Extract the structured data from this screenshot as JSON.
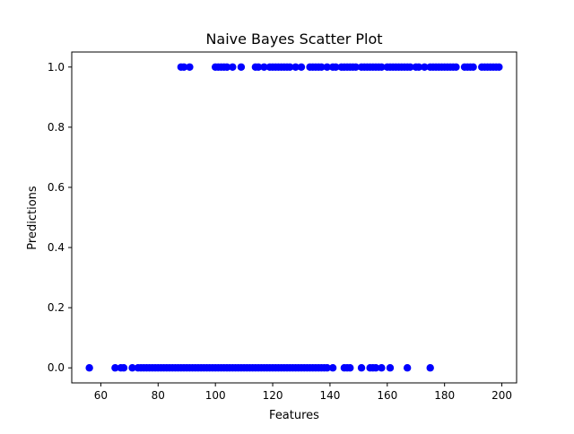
{
  "chart_data": {
    "type": "scatter",
    "title": "Naive Bayes Scatter Plot",
    "xlabel": "Features",
    "ylabel": "Predictions",
    "xlim": [
      49.85,
      205.15
    ],
    "ylim": [
      -0.05,
      1.05
    ],
    "xticks": [
      60,
      80,
      100,
      120,
      140,
      160,
      180,
      200
    ],
    "xtick_labels": [
      "60",
      "80",
      "100",
      "120",
      "140",
      "160",
      "180",
      "200"
    ],
    "yticks": [
      0.0,
      0.2,
      0.4,
      0.6,
      0.8,
      1.0
    ],
    "ytick_labels": [
      "0.0",
      "0.2",
      "0.4",
      "0.6",
      "0.8",
      "1.0"
    ],
    "marker_color": "#0000ff",
    "grid": false,
    "series": [
      {
        "label_y": 1.0,
        "x": [
          88,
          89,
          91,
          100,
          101,
          102,
          103,
          104,
          106,
          109,
          114,
          115,
          117,
          119,
          120,
          121,
          122,
          123,
          124,
          125,
          126,
          128,
          130,
          133,
          134,
          135,
          136,
          137,
          139,
          141,
          142,
          144,
          145,
          146,
          147,
          148,
          149,
          151,
          152,
          153,
          154,
          155,
          156,
          157,
          158,
          160,
          161,
          162,
          163,
          164,
          165,
          166,
          167,
          168,
          170,
          171,
          173,
          175,
          176,
          177,
          178,
          179,
          180,
          181,
          182,
          183,
          184,
          187,
          188,
          189,
          190,
          193,
          194,
          195,
          196,
          197,
          198,
          199
        ],
        "y": [
          1,
          1,
          1,
          1,
          1,
          1,
          1,
          1,
          1,
          1,
          1,
          1,
          1,
          1,
          1,
          1,
          1,
          1,
          1,
          1,
          1,
          1,
          1,
          1,
          1,
          1,
          1,
          1,
          1,
          1,
          1,
          1,
          1,
          1,
          1,
          1,
          1,
          1,
          1,
          1,
          1,
          1,
          1,
          1,
          1,
          1,
          1,
          1,
          1,
          1,
          1,
          1,
          1,
          1,
          1,
          1,
          1,
          1,
          1,
          1,
          1,
          1,
          1,
          1,
          1,
          1,
          1,
          1,
          1,
          1,
          1,
          1,
          1,
          1,
          1,
          1,
          1,
          1
        ]
      },
      {
        "label_y": 0.0,
        "x": [
          56,
          65,
          67,
          68,
          71,
          73,
          74,
          75,
          76,
          77,
          78,
          79,
          80,
          81,
          82,
          83,
          84,
          85,
          86,
          87,
          88,
          89,
          90,
          91,
          92,
          93,
          94,
          95,
          96,
          97,
          98,
          99,
          100,
          101,
          102,
          103,
          104,
          105,
          106,
          107,
          108,
          109,
          110,
          111,
          112,
          113,
          114,
          115,
          116,
          117,
          118,
          119,
          120,
          121,
          122,
          123,
          124,
          125,
          126,
          127,
          128,
          129,
          130,
          131,
          132,
          133,
          134,
          135,
          136,
          137,
          138,
          139,
          141,
          145,
          146,
          147,
          151,
          154,
          155,
          156,
          158,
          161,
          167,
          175
        ],
        "y": [
          0,
          0,
          0,
          0,
          0,
          0,
          0,
          0,
          0,
          0,
          0,
          0,
          0,
          0,
          0,
          0,
          0,
          0,
          0,
          0,
          0,
          0,
          0,
          0,
          0,
          0,
          0,
          0,
          0,
          0,
          0,
          0,
          0,
          0,
          0,
          0,
          0,
          0,
          0,
          0,
          0,
          0,
          0,
          0,
          0,
          0,
          0,
          0,
          0,
          0,
          0,
          0,
          0,
          0,
          0,
          0,
          0,
          0,
          0,
          0,
          0,
          0,
          0,
          0,
          0,
          0,
          0,
          0,
          0,
          0,
          0,
          0,
          0,
          0,
          0,
          0,
          0,
          0,
          0,
          0,
          0,
          0,
          0,
          0
        ]
      }
    ]
  }
}
